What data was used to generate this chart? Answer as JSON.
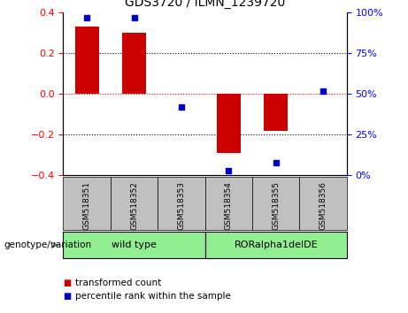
{
  "title": "GDS3720 / ILMN_1239720",
  "samples": [
    "GSM518351",
    "GSM518352",
    "GSM518353",
    "GSM518354",
    "GSM518355",
    "GSM518356"
  ],
  "bar_values": [
    0.33,
    0.3,
    0.0,
    -0.29,
    -0.18,
    0.0
  ],
  "percentile_values": [
    97,
    97,
    42,
    3,
    8,
    52
  ],
  "bar_color": "#CC0000",
  "percentile_color": "#0000CC",
  "ylim_left": [
    -0.4,
    0.4
  ],
  "ylim_right": [
    0,
    100
  ],
  "yticks_left": [
    -0.4,
    -0.2,
    0.0,
    0.2,
    0.4
  ],
  "yticks_right": [
    0,
    25,
    50,
    75,
    100
  ],
  "group_defs": [
    {
      "label": "wild type",
      "start": 0,
      "end": 3
    },
    {
      "label": "RORalpha1delDE",
      "start": 3,
      "end": 6
    }
  ],
  "group_bg_color": "#C0C0C0",
  "group_bar_color": "#90EE90",
  "group_label": "genotype/variation",
  "legend_items": [
    {
      "color": "#CC0000",
      "label": "transformed count"
    },
    {
      "color": "#0000CC",
      "label": "percentile rank within the sample"
    }
  ]
}
